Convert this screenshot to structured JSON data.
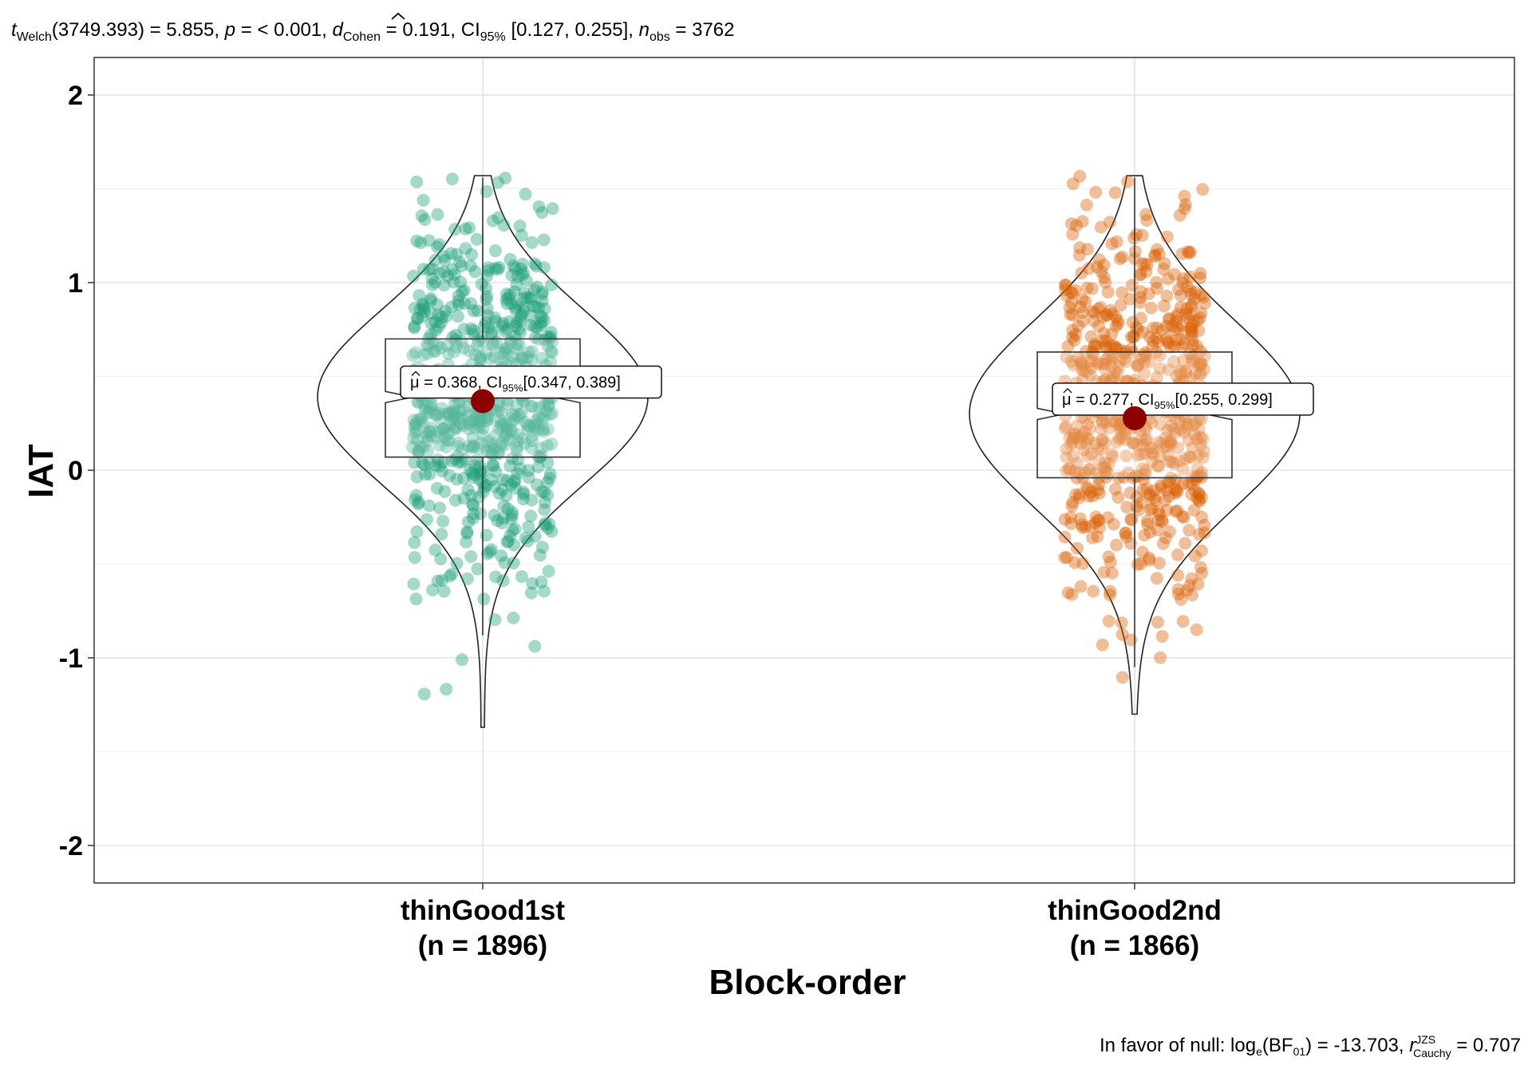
{
  "chart_data": {
    "type": "violin-box-jitter",
    "subtitle": {
      "t_sub": "Welch",
      "t_value": "(3749.393) = 5.855, ",
      "p_text": " = < 0.001, ",
      "d_sub": "Cohen",
      "d_value": " = 0.191, ",
      "ci_text": "CI",
      "ci_sub": "95%",
      "ci_value": " [0.127, 0.255], ",
      "n_sub": "obs",
      "n_value": " = 3762"
    },
    "caption": {
      "prefix": "In favor of null: log",
      "log_sub": "e",
      "bf_text": "(BF",
      "bf_sub": "01",
      "bf_value": ") = -13.703, ",
      "r_sup": "JZS",
      "r_sub": "Cauchy",
      "r_value": " = 0.707"
    },
    "xlabel": "Block-order",
    "ylabel": "IAT",
    "ylim": [
      -2.2,
      2.2
    ],
    "yticks": [
      -2,
      -1,
      0,
      1,
      2
    ],
    "grid": true,
    "groups": [
      {
        "name": "thinGood1st",
        "n_label": "(n = 1896)",
        "n": 1896,
        "color": "#1B9E77",
        "mean": 0.368,
        "ci_low": 0.347,
        "ci_high": 0.389,
        "q1": 0.07,
        "median": 0.39,
        "q3": 0.7,
        "whisker_low": -0.88,
        "whisker_high": 1.56,
        "min": -1.37,
        "max": 1.57,
        "mean_label": "= 0.368, CI",
        "mean_label_sub": "95%",
        "mean_label_ci": "[0.347, 0.389]"
      },
      {
        "name": "thinGood2nd",
        "n_label": "(n = 1866)",
        "n": 1866,
        "color": "#D95F02",
        "mean": 0.277,
        "ci_low": 0.255,
        "ci_high": 0.299,
        "q1": -0.04,
        "median": 0.3,
        "q3": 0.63,
        "whisker_low": -1.05,
        "whisker_high": 1.56,
        "min": -1.3,
        "max": 1.57,
        "mean_label": "= 0.277, CI",
        "mean_label_sub": "95%",
        "mean_label_ci": "[0.255, 0.299]"
      }
    ],
    "mean_marker_color": "#8B0000"
  }
}
